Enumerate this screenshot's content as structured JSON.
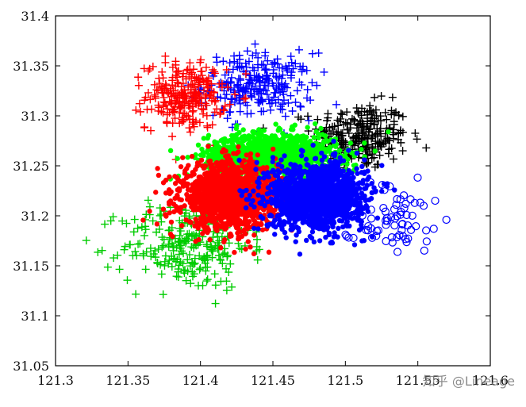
{
  "chart_data": {
    "type": "scatter",
    "title": "",
    "xlabel": "",
    "ylabel": "",
    "xlim": [
      121.3,
      121.6
    ],
    "ylim": [
      31.05,
      31.4
    ],
    "x_ticks": [
      "121.3",
      "121.35",
      "121.4",
      "121.45",
      "121.5",
      "121.55",
      "121.6"
    ],
    "y_ticks": [
      "31.05",
      "31.1",
      "31.15",
      "31.2",
      "31.25",
      "31.3",
      "31.35",
      "31.4"
    ],
    "grid": false,
    "legend": "none",
    "series": [
      {
        "color": "#000000",
        "marker": "plus",
        "center": [
          121.51,
          31.28
        ],
        "spread": [
          0.03,
          0.03
        ]
      },
      {
        "color": "#0000ff",
        "marker": "plus",
        "center": [
          121.44,
          31.33
        ],
        "spread": [
          0.035,
          0.03
        ]
      },
      {
        "color": "#ff0000",
        "marker": "plus",
        "center": [
          121.39,
          31.32
        ],
        "spread": [
          0.025,
          0.03
        ]
      },
      {
        "color": "#00cc00",
        "marker": "plus",
        "center": [
          121.39,
          31.17
        ],
        "spread": [
          0.04,
          0.04
        ]
      },
      {
        "color": "#00ff00",
        "marker": "circle_fill",
        "center": [
          121.45,
          31.26
        ],
        "spread": [
          0.04,
          0.02
        ]
      },
      {
        "color": "#ff0000",
        "marker": "circle_fill",
        "center": [
          121.42,
          31.22
        ],
        "spread": [
          0.03,
          0.03
        ]
      },
      {
        "color": "#0000ff",
        "marker": "circle_fill",
        "center": [
          121.48,
          31.22
        ],
        "spread": [
          0.03,
          0.03
        ]
      },
      {
        "color": "#0000ff",
        "marker": "circle_open",
        "center": [
          121.53,
          31.2
        ],
        "spread": [
          0.03,
          0.03
        ]
      }
    ]
  },
  "watermark_text": "知乎 @Lineage"
}
